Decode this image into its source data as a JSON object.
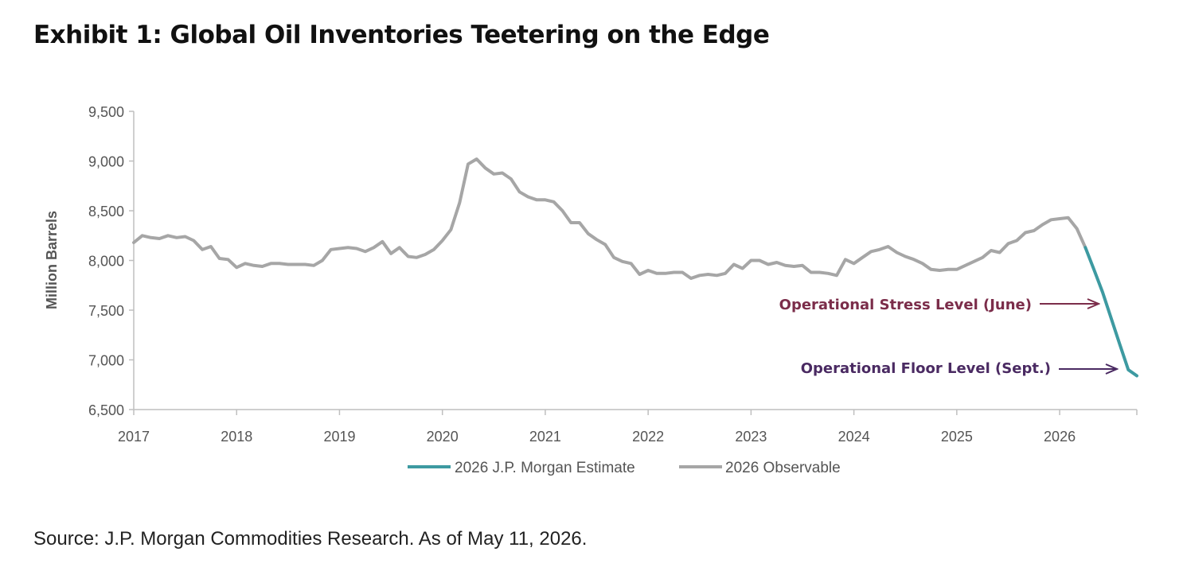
{
  "title": "Exhibit 1: Global Oil Inventories Teetering on the Edge",
  "source": "Source: J.P. Morgan Commodities Research. As of May 11, 2026.",
  "colors": {
    "observable": "#a6a6a6",
    "estimate": "#3d9aa1",
    "stress": "#7b2d4a",
    "floor": "#4a2a62",
    "axis": "#bfbfbf"
  },
  "chart_data": {
    "type": "line",
    "title": "",
    "xlabel": "",
    "ylabel": "Million Barrels",
    "ylim": [
      6500,
      9500
    ],
    "xlim": [
      2017,
      2026.75
    ],
    "y_ticks": [
      "6,500",
      "7,000",
      "7,500",
      "8,000",
      "8,500",
      "9,000",
      "9,500"
    ],
    "y_tick_values": [
      6500,
      7000,
      7500,
      8000,
      8500,
      9000,
      9500
    ],
    "x_ticks": [
      "2017",
      "2018",
      "2019",
      "2020",
      "2021",
      "2022",
      "2023",
      "2024",
      "2025",
      "2026"
    ],
    "x_tick_values": [
      2017,
      2018,
      2019,
      2020,
      2021,
      2022,
      2023,
      2024,
      2025,
      2026
    ],
    "grid": false,
    "legend_position": "bottom",
    "series": [
      {
        "name": "2026 J.P. Morgan Estimate",
        "color": "#3d9aa1",
        "x": [
          2026.25,
          2026.333,
          2026.417,
          2026.5,
          2026.583,
          2026.667,
          2026.75
        ],
        "y": [
          8130,
          7910,
          7680,
          7420,
          7160,
          6900,
          6840
        ]
      },
      {
        "name": "2026 Observable",
        "color": "#a6a6a6",
        "x": [
          2017.0,
          2017.083,
          2017.167,
          2017.25,
          2017.333,
          2017.417,
          2017.5,
          2017.583,
          2017.667,
          2017.75,
          2017.833,
          2017.917,
          2018.0,
          2018.083,
          2018.167,
          2018.25,
          2018.333,
          2018.417,
          2018.5,
          2018.583,
          2018.667,
          2018.75,
          2018.833,
          2018.917,
          2019.0,
          2019.083,
          2019.167,
          2019.25,
          2019.333,
          2019.417,
          2019.5,
          2019.583,
          2019.667,
          2019.75,
          2019.833,
          2019.917,
          2020.0,
          2020.083,
          2020.167,
          2020.25,
          2020.333,
          2020.417,
          2020.5,
          2020.583,
          2020.667,
          2020.75,
          2020.833,
          2020.917,
          2021.0,
          2021.083,
          2021.167,
          2021.25,
          2021.333,
          2021.417,
          2021.5,
          2021.583,
          2021.667,
          2021.75,
          2021.833,
          2021.917,
          2022.0,
          2022.083,
          2022.167,
          2022.25,
          2022.333,
          2022.417,
          2022.5,
          2022.583,
          2022.667,
          2022.75,
          2022.833,
          2022.917,
          2023.0,
          2023.083,
          2023.167,
          2023.25,
          2023.333,
          2023.417,
          2023.5,
          2023.583,
          2023.667,
          2023.75,
          2023.833,
          2023.917,
          2024.0,
          2024.083,
          2024.167,
          2024.25,
          2024.333,
          2024.417,
          2024.5,
          2024.583,
          2024.667,
          2024.75,
          2024.833,
          2024.917,
          2025.0,
          2025.083,
          2025.167,
          2025.25,
          2025.333,
          2025.417,
          2025.5,
          2025.583,
          2025.667,
          2025.75,
          2025.833,
          2025.917,
          2026.0,
          2026.083,
          2026.167,
          2026.25
        ],
        "y": [
          8180,
          8250,
          8230,
          8220,
          8250,
          8230,
          8240,
          8200,
          8110,
          8140,
          8020,
          8010,
          7930,
          7970,
          7950,
          7940,
          7970,
          7970,
          7960,
          7960,
          7960,
          7950,
          8000,
          8110,
          8120,
          8130,
          8120,
          8090,
          8130,
          8190,
          8070,
          8130,
          8040,
          8030,
          8060,
          8110,
          8200,
          8310,
          8580,
          8970,
          9020,
          8930,
          8870,
          8880,
          8820,
          8690,
          8640,
          8610,
          8610,
          8590,
          8500,
          8380,
          8380,
          8270,
          8210,
          8160,
          8030,
          7990,
          7970,
          7860,
          7900,
          7870,
          7870,
          7880,
          7880,
          7820,
          7850,
          7860,
          7850,
          7870,
          7960,
          7920,
          8000,
          8000,
          7960,
          7980,
          7950,
          7940,
          7950,
          7880,
          7880,
          7870,
          7850,
          8010,
          7970,
          8030,
          8090,
          8110,
          8140,
          8080,
          8040,
          8010,
          7970,
          7910,
          7900,
          7910,
          7910,
          7950,
          7990,
          8030,
          8100,
          8080,
          8170,
          8200,
          8280,
          8300,
          8360,
          8410,
          8420,
          8430,
          8320,
          8130
        ]
      }
    ],
    "annotations": [
      {
        "text": "Operational Stress Level (June)",
        "color": "#7b2d4a"
      },
      {
        "text": "Operational Floor Level (Sept.)",
        "color": "#4a2a62"
      }
    ]
  }
}
